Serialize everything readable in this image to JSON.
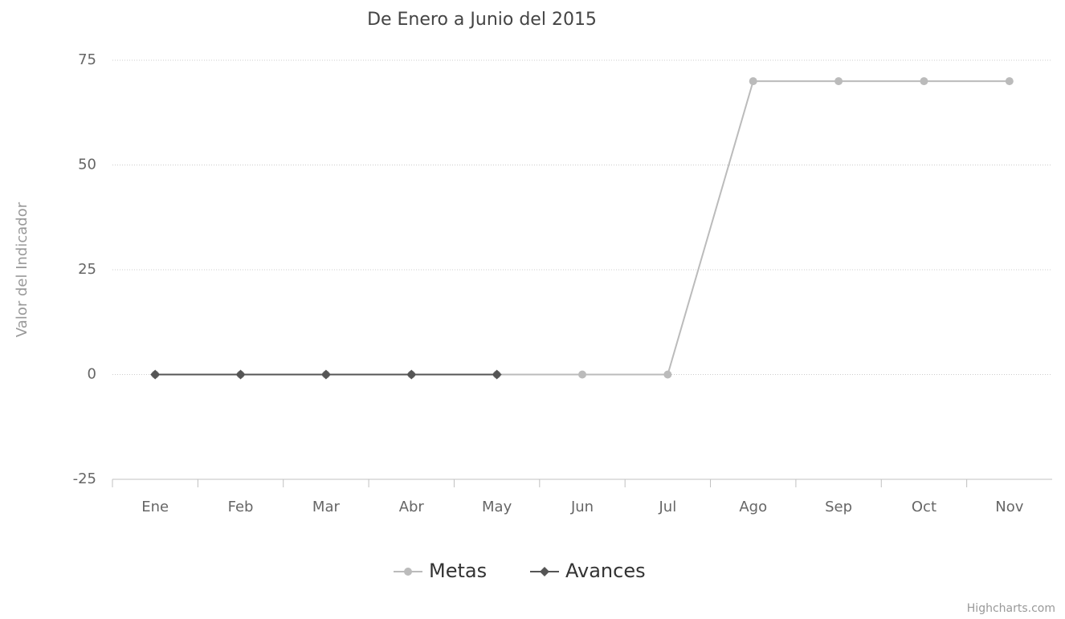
{
  "chart_data": {
    "type": "line",
    "title": "De Enero a Junio del 2015",
    "y_axis_label": "Valor del Indicador",
    "categories": [
      "Ene",
      "Feb",
      "Mar",
      "Abr",
      "May",
      "Jun",
      "Jul",
      "Ago",
      "Sep",
      "Oct",
      "Nov"
    ],
    "series": [
      {
        "name": "Metas",
        "color": "#bbbbbb",
        "marker": "circle",
        "values": [
          0,
          0,
          0,
          0,
          0,
          0,
          0,
          70,
          70,
          70,
          70
        ]
      },
      {
        "name": "Avances",
        "color": "#555555",
        "marker": "diamond",
        "values": [
          0,
          0,
          0,
          0,
          0,
          null,
          null,
          null,
          null,
          null,
          null
        ]
      }
    ],
    "ylim": [
      -25,
      75
    ],
    "yticks": [
      -25,
      0,
      25,
      50,
      75
    ],
    "grid": true,
    "legend": "bottom",
    "credits": "Highcharts.com"
  }
}
